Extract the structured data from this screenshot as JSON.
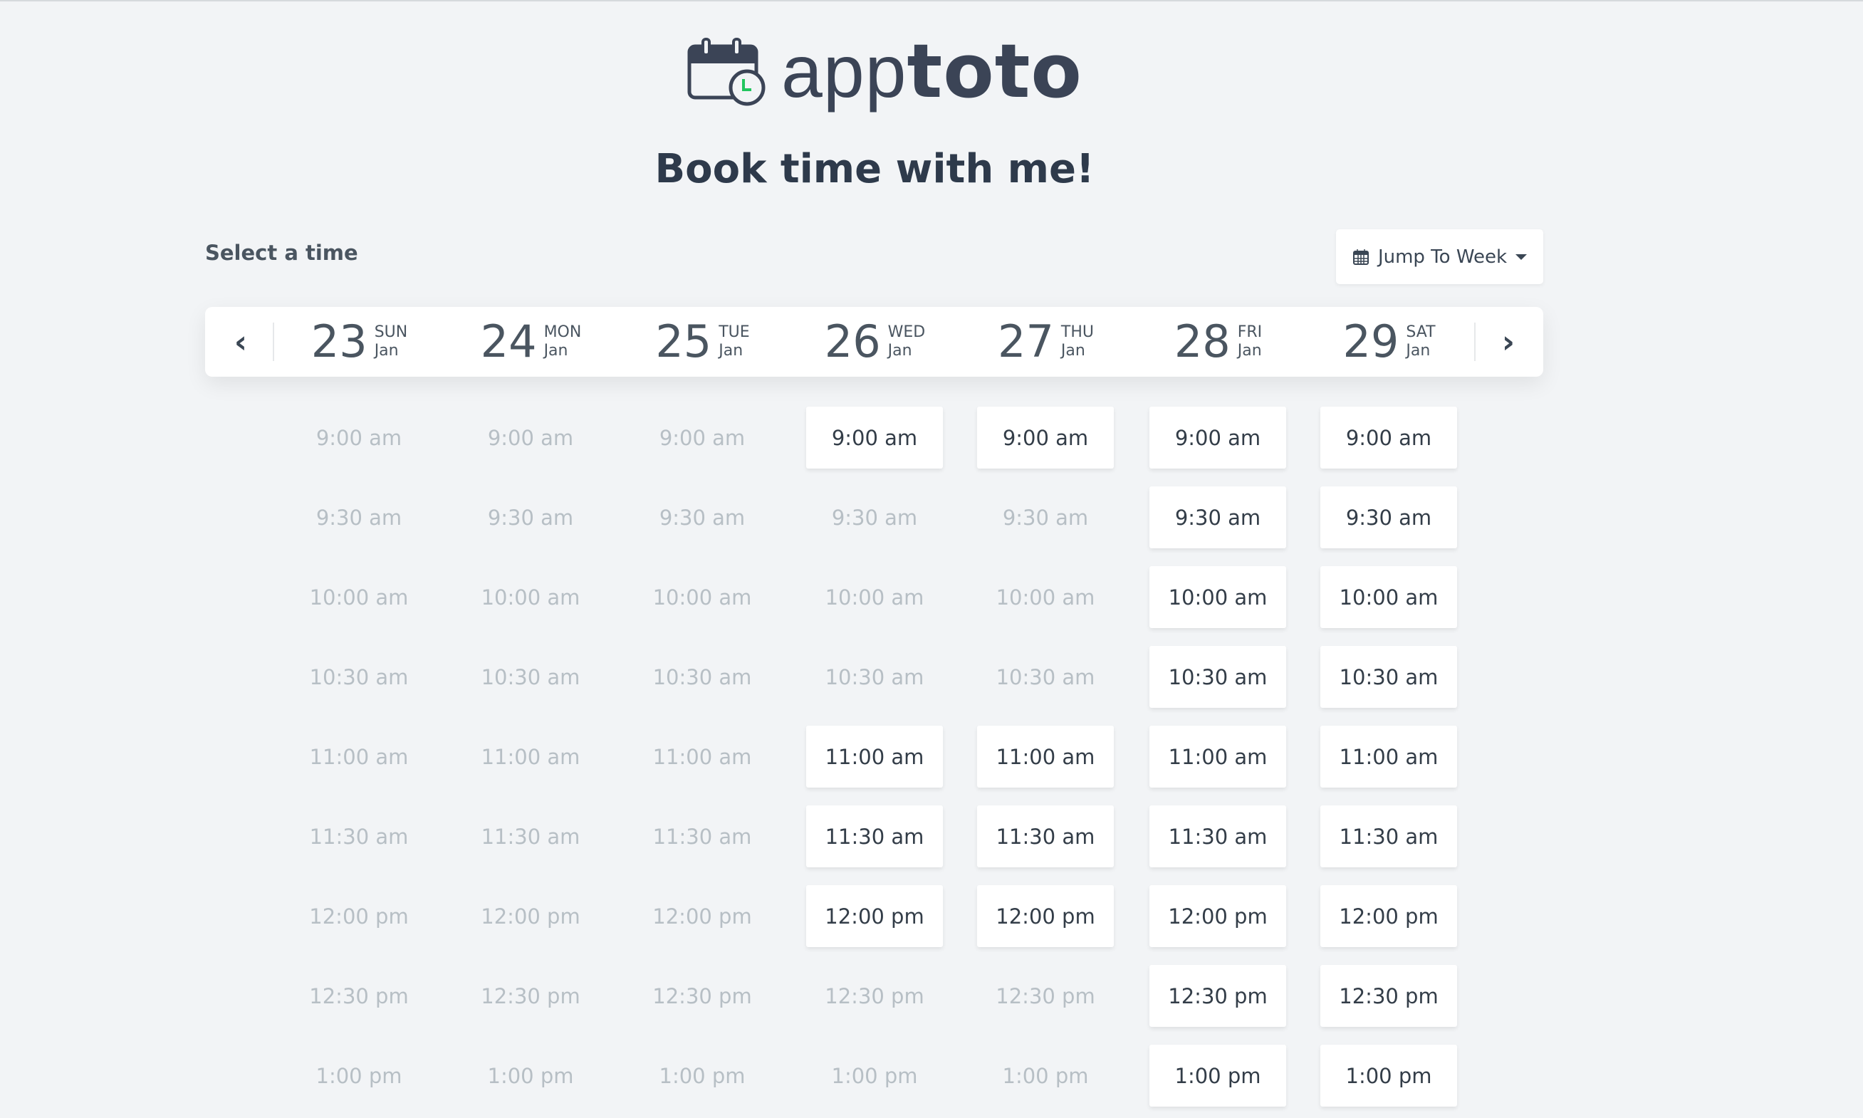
{
  "brand": {
    "logo_text_light": "app",
    "logo_text_bold": "toto",
    "icon": "calendar-clock-icon",
    "accent_color": "#22c55e"
  },
  "title": "Book time with me!",
  "select_label": "Select a time",
  "jump_button": {
    "label": "Jump To Week",
    "icon": "calendar-icon"
  },
  "nav": {
    "prev_icon": "chevron-left-icon",
    "next_icon": "chevron-right-icon"
  },
  "days": [
    {
      "num": "23",
      "dow": "SUN",
      "month": "Jan"
    },
    {
      "num": "24",
      "dow": "MON",
      "month": "Jan"
    },
    {
      "num": "25",
      "dow": "TUE",
      "month": "Jan"
    },
    {
      "num": "26",
      "dow": "WED",
      "month": "Jan"
    },
    {
      "num": "27",
      "dow": "THU",
      "month": "Jan"
    },
    {
      "num": "28",
      "dow": "FRI",
      "month": "Jan"
    },
    {
      "num": "29",
      "dow": "SAT",
      "month": "Jan"
    }
  ],
  "times": [
    "9:00 am",
    "9:30 am",
    "10:00 am",
    "10:30 am",
    "11:00 am",
    "11:30 am",
    "12:00 pm",
    "12:30 pm",
    "1:00 pm"
  ],
  "availability": [
    [
      false,
      false,
      false,
      false,
      false,
      false,
      false,
      false,
      false
    ],
    [
      false,
      false,
      false,
      false,
      false,
      false,
      false,
      false,
      false
    ],
    [
      false,
      false,
      false,
      false,
      false,
      false,
      false,
      false,
      false
    ],
    [
      true,
      false,
      false,
      false,
      true,
      true,
      true,
      false,
      false
    ],
    [
      true,
      false,
      false,
      false,
      true,
      true,
      true,
      false,
      false
    ],
    [
      true,
      true,
      true,
      true,
      true,
      true,
      true,
      true,
      true
    ],
    [
      true,
      true,
      true,
      true,
      true,
      true,
      true,
      true,
      true
    ]
  ]
}
